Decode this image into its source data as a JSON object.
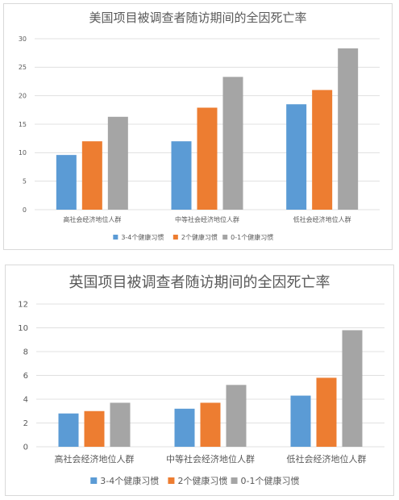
{
  "chart_data": [
    {
      "type": "bar",
      "title": "美国项目被调查者随访期间的全因死亡率",
      "categories": [
        "高社会经济地位人群",
        "中等社会经济地位人群",
        "低社会经济地位人群"
      ],
      "series": [
        {
          "name": "3-4个健康习惯",
          "values": [
            9.6,
            12.0,
            18.5
          ]
        },
        {
          "name": "2个健康习惯",
          "values": [
            12.0,
            17.9,
            21.0
          ]
        },
        {
          "name": "0-1个健康习惯",
          "values": [
            16.3,
            23.3,
            28.3
          ]
        }
      ],
      "ylim": [
        0,
        30
      ],
      "yticks": [
        0,
        5,
        10,
        15,
        20,
        25,
        30
      ],
      "grid": true,
      "legend": "bottom"
    },
    {
      "type": "bar",
      "title": "英国项目被调查者随访期间的全因死亡率",
      "categories": [
        "高社会经济地位人群",
        "中等社会经济地位人群",
        "低社会经济地位人群"
      ],
      "series": [
        {
          "name": "3-4个健康习惯",
          "values": [
            2.8,
            3.2,
            4.3
          ]
        },
        {
          "name": "2个健康习惯",
          "values": [
            3.0,
            3.7,
            5.8
          ]
        },
        {
          "name": "0-1个健康习惯",
          "values": [
            3.7,
            5.2,
            9.8
          ]
        }
      ],
      "ylim": [
        0,
        12
      ],
      "yticks": [
        0,
        2,
        4,
        6,
        8,
        10,
        12
      ],
      "grid": true,
      "legend": "bottom"
    }
  ],
  "colors": {
    "series": [
      "#5b9bd5",
      "#ed7d31",
      "#a5a5a5"
    ]
  }
}
